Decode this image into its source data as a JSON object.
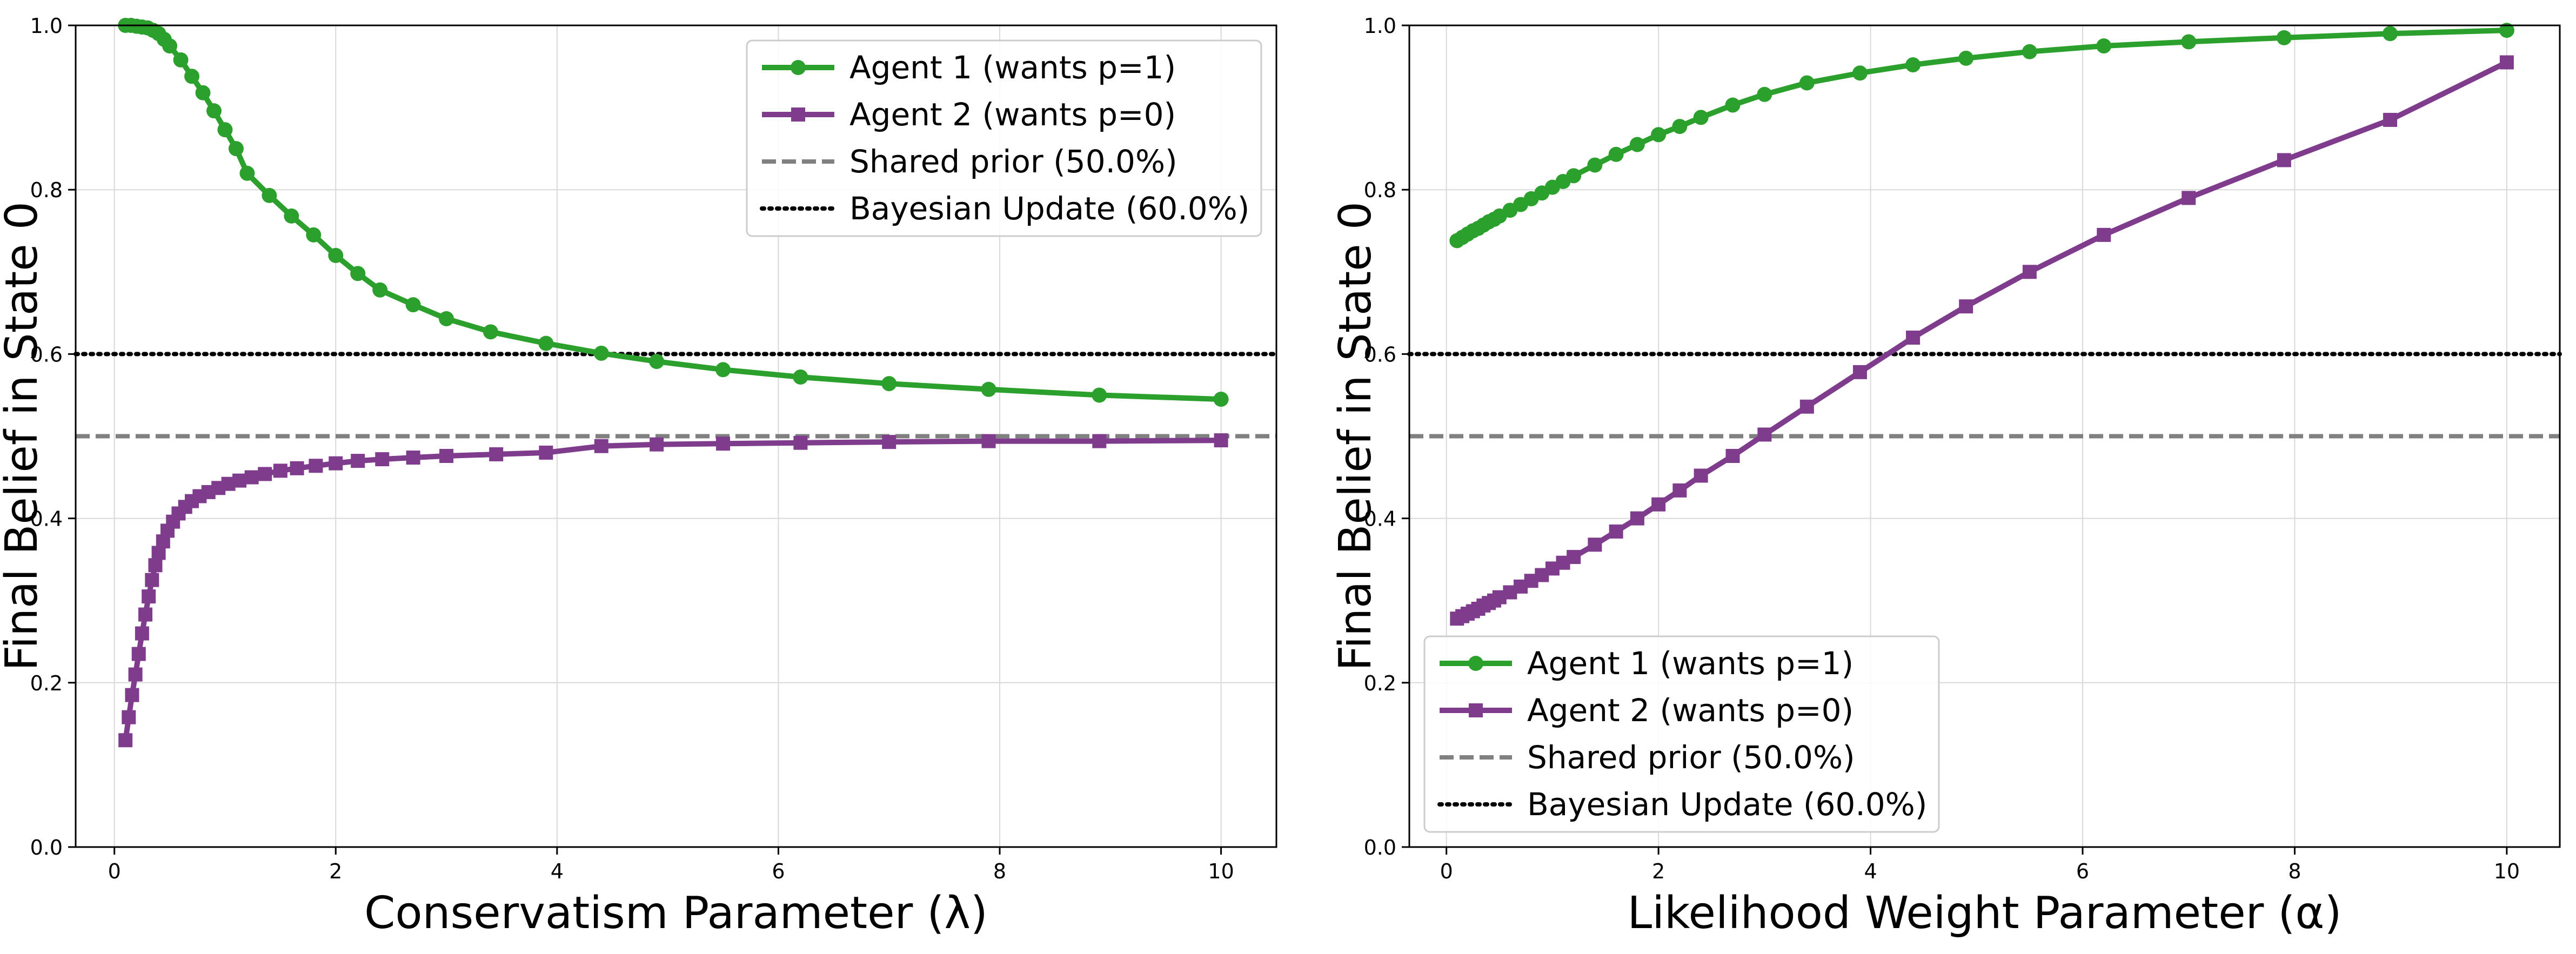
{
  "chart_data": [
    {
      "type": "line",
      "xlabel": "Conservatism Parameter (λ)",
      "ylabel": "Final Belief in State 0",
      "xlim": [
        -0.35,
        10.5
      ],
      "ylim": [
        0.0,
        1.0
      ],
      "xticks": [
        "0",
        "2",
        "4",
        "6",
        "8",
        "10"
      ],
      "yticks": [
        "0.0",
        "0.2",
        "0.4",
        "0.6",
        "0.8",
        "1.0"
      ],
      "grid": true,
      "legend_position": "top-right",
      "x": [
        0.1,
        0.15,
        0.2,
        0.25,
        0.3,
        0.35,
        0.4,
        0.45,
        0.5,
        0.6,
        0.7,
        0.8,
        0.9,
        1.0,
        1.1,
        1.2,
        1.4,
        1.6,
        1.8,
        2.0,
        2.2,
        2.4,
        2.7,
        3.0,
        3.4,
        3.9,
        4.4,
        4.9,
        5.5,
        6.2,
        7.0,
        7.9,
        8.9,
        10.0
      ],
      "series": [
        {
          "name": "Agent 1 (wants p=1)",
          "color": "#2ca02c",
          "marker": "circle",
          "values": [
            1.0,
            1.0,
            0.999,
            0.998,
            0.997,
            0.994,
            0.99,
            0.983,
            0.975,
            0.958,
            0.938,
            0.918,
            0.896,
            0.873,
            0.85,
            0.82,
            0.793,
            0.768,
            0.745,
            0.72,
            0.698,
            0.678,
            0.66,
            0.643,
            0.627,
            0.613,
            0.601,
            0.591,
            0.581,
            0.572,
            0.564,
            0.557,
            0.55,
            0.545
          ]
        },
        {
          "name": "Agent 2 (wants p=0)",
          "color": "#7f3c8d",
          "marker": "square",
          "values": [
            0.13,
            0.158,
            0.185,
            0.21,
            0.235,
            0.26,
            0.283,
            0.305,
            0.325,
            0.343,
            0.358,
            0.372,
            0.385,
            0.396,
            0.406,
            0.414,
            0.421,
            0.427,
            0.432,
            0.437,
            0.442,
            0.446,
            0.45,
            0.454,
            0.458,
            0.461,
            0.464,
            0.467,
            0.47,
            0.472,
            0.474,
            0.476,
            0.478,
            0.48
          ]
        }
      ],
      "agent2_x": [
        0.1,
        0.13,
        0.16,
        0.19,
        0.22,
        0.25,
        0.28,
        0.31,
        0.34,
        0.37,
        0.4,
        0.44,
        0.48,
        0.53,
        0.58,
        0.64,
        0.7,
        0.77,
        0.85,
        0.94,
        1.03,
        1.13,
        1.24,
        1.36,
        1.5,
        1.65,
        1.82,
        2.0,
        2.2,
        2.42,
        2.7,
        3.0,
        3.45,
        3.9
      ],
      "agent2_tail_x": [
        4.4,
        4.9,
        5.5,
        6.2,
        7.0,
        7.9,
        8.9,
        10.0
      ],
      "agent2_tail_values": [
        0.488,
        0.49,
        0.491,
        0.492,
        0.493,
        0.494,
        0.494,
        0.495
      ],
      "reference_lines": [
        {
          "name": "Shared prior (50.0%)",
          "value": 0.5,
          "color": "#808080",
          "style": "dashed"
        },
        {
          "name": "Bayesian Update (60.0%)",
          "value": 0.6,
          "color": "#000000",
          "style": "dotted"
        }
      ]
    },
    {
      "type": "line",
      "xlabel": "Likelihood Weight Parameter (α)",
      "ylabel": "Final Belief in State 0",
      "xlim": [
        -0.35,
        10.5
      ],
      "ylim": [
        0.0,
        1.0
      ],
      "xticks": [
        "0",
        "2",
        "4",
        "6",
        "8",
        "10"
      ],
      "yticks": [
        "0.0",
        "0.2",
        "0.4",
        "0.6",
        "0.8",
        "1.0"
      ],
      "grid": true,
      "legend_position": "bottom-left",
      "x": [
        0.1,
        0.15,
        0.2,
        0.25,
        0.3,
        0.35,
        0.4,
        0.45,
        0.5,
        0.6,
        0.7,
        0.8,
        0.9,
        1.0,
        1.1,
        1.2,
        1.4,
        1.6,
        1.8,
        2.0,
        2.2,
        2.4,
        2.7,
        3.0,
        3.4,
        3.9,
        4.4,
        4.9,
        5.5,
        6.2,
        7.0,
        7.9,
        8.9,
        10.0
      ],
      "series": [
        {
          "name": "Agent 1 (wants p=1)",
          "color": "#2ca02c",
          "marker": "circle",
          "values": [
            0.738,
            0.742,
            0.746,
            0.75,
            0.753,
            0.757,
            0.761,
            0.764,
            0.768,
            0.775,
            0.782,
            0.789,
            0.796,
            0.803,
            0.81,
            0.817,
            0.83,
            0.843,
            0.855,
            0.867,
            0.877,
            0.888,
            0.903,
            0.916,
            0.93,
            0.942,
            0.952,
            0.96,
            0.968,
            0.975,
            0.98,
            0.985,
            0.99,
            0.994
          ]
        },
        {
          "name": "Agent 2 (wants p=0)",
          "color": "#7f3c8d",
          "marker": "square",
          "values": [
            0.278,
            0.281,
            0.284,
            0.287,
            0.29,
            0.294,
            0.297,
            0.3,
            0.304,
            0.31,
            0.317,
            0.324,
            0.331,
            0.339,
            0.346,
            0.353,
            0.368,
            0.384,
            0.4,
            0.417,
            0.434,
            0.452,
            0.476,
            0.502,
            0.536,
            0.578,
            0.62,
            0.658,
            0.7,
            0.745,
            0.79,
            0.836,
            0.885,
            0.955
          ]
        }
      ],
      "reference_lines": [
        {
          "name": "Shared prior (50.0%)",
          "value": 0.5,
          "color": "#808080",
          "style": "dashed"
        },
        {
          "name": "Bayesian Update (60.0%)",
          "value": 0.6,
          "color": "#000000",
          "style": "dotted"
        }
      ]
    }
  ]
}
